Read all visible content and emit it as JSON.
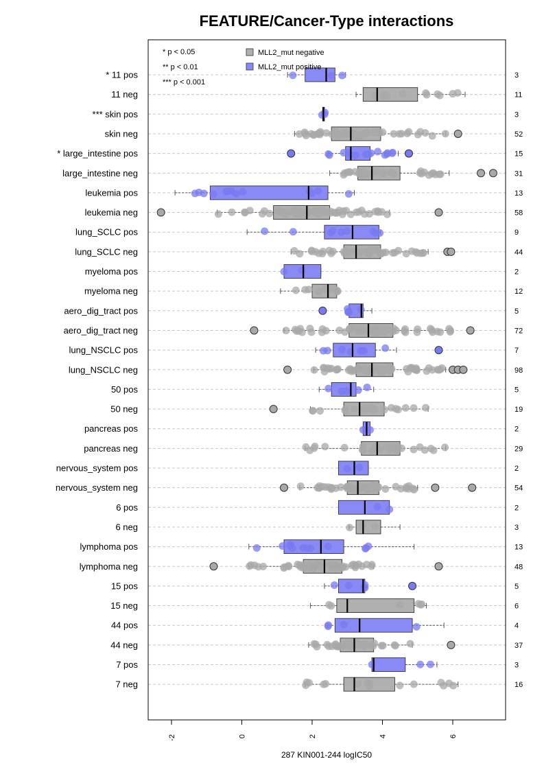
{
  "chart_data": {
    "type": "boxplot",
    "title": "FEATURE/Cancer-Type interactions",
    "xlabel": "287 KIN001-244 logIC50",
    "xlim": [
      -3,
      7.5
    ],
    "x_ticks": [
      "-2",
      "0",
      "2",
      "4",
      "6"
    ],
    "x_tick_values": [
      -2,
      0,
      2,
      4,
      6
    ],
    "orientation": "horizontal",
    "grid": "horizontal dashed",
    "colors": {
      "negative": "#b0b0b0",
      "positive": "#8a8af7",
      "negative_point": "#a8a8a8",
      "positive_point": "#7a7af0"
    },
    "significance_legend": [
      "* p < 0.05",
      "** p < 0.01",
      "*** p < 0.001"
    ],
    "legend": [
      {
        "label": "MLL2_mut negative",
        "group": "neg"
      },
      {
        "label": "MLL2_mut positive",
        "group": "pos"
      }
    ],
    "legend_position": "top-left",
    "rows": [
      {
        "label": "* 11 pos",
        "group": "pos",
        "n": "3",
        "q1": 1.8,
        "median": 2.4,
        "q3": 2.65,
        "wlo": 1.3,
        "whi": 2.95,
        "outliers": []
      },
      {
        "label": "11 neg",
        "group": "neg",
        "n": "11",
        "q1": 3.45,
        "median": 3.85,
        "q3": 5.0,
        "wlo": 3.25,
        "whi": 6.35,
        "outliers": []
      },
      {
        "label": "*** skin pos",
        "group": "pos",
        "n": "3",
        "q1": 2.3,
        "median": 2.32,
        "q3": 2.35,
        "wlo": 2.28,
        "whi": 2.37,
        "outliers": []
      },
      {
        "label": "skin neg",
        "group": "neg",
        "n": "52",
        "q1": 2.55,
        "median": 3.1,
        "q3": 3.95,
        "wlo": 1.5,
        "whi": 5.8,
        "outliers": [
          6.15
        ]
      },
      {
        "label": "* large_intestine pos",
        "group": "pos",
        "n": "15",
        "q1": 2.95,
        "median": 3.1,
        "q3": 3.65,
        "wlo": 2.45,
        "whi": 4.45,
        "outliers": [
          1.4,
          4.75
        ]
      },
      {
        "label": "large_intestine neg",
        "group": "neg",
        "n": "31",
        "q1": 3.3,
        "median": 3.7,
        "q3": 4.5,
        "wlo": 2.5,
        "whi": 5.9,
        "outliers": [
          6.8,
          7.15
        ]
      },
      {
        "label": "leukemia pos",
        "group": "pos",
        "n": "13",
        "q1": -0.9,
        "median": 1.9,
        "q3": 2.45,
        "wlo": -1.9,
        "whi": 3.2,
        "outliers": []
      },
      {
        "label": "leukemia neg",
        "group": "neg",
        "n": "58",
        "q1": 0.9,
        "median": 1.85,
        "q3": 2.5,
        "wlo": -0.7,
        "whi": 4.2,
        "outliers": [
          -2.3,
          5.6
        ]
      },
      {
        "label": "lung_SCLC pos",
        "group": "pos",
        "n": "9",
        "q1": 2.35,
        "median": 3.15,
        "q3": 3.9,
        "wlo": 0.15,
        "whi": 3.95,
        "outliers": []
      },
      {
        "label": "lung_SCLC neg",
        "group": "neg",
        "n": "44",
        "q1": 2.9,
        "median": 3.25,
        "q3": 3.95,
        "wlo": 1.4,
        "whi": 5.3,
        "outliers": [
          5.85,
          5.95
        ]
      },
      {
        "label": "myeloma pos",
        "group": "pos",
        "n": "2",
        "q1": 1.2,
        "median": 1.75,
        "q3": 2.25,
        "wlo": 1.2,
        "whi": 2.25,
        "outliers": []
      },
      {
        "label": "myeloma neg",
        "group": "neg",
        "n": "12",
        "q1": 2.0,
        "median": 2.45,
        "q3": 2.7,
        "wlo": 1.1,
        "whi": 2.75,
        "outliers": []
      },
      {
        "label": "aero_dig_tract pos",
        "group": "pos",
        "n": "5",
        "q1": 3.05,
        "median": 3.4,
        "q3": 3.45,
        "wlo": 3.0,
        "whi": 3.7,
        "outliers": [
          2.3
        ]
      },
      {
        "label": "aero_dig_tract neg",
        "group": "neg",
        "n": "72",
        "q1": 3.05,
        "median": 3.6,
        "q3": 4.3,
        "wlo": 1.2,
        "whi": 6.0,
        "outliers": [
          0.35,
          6.5
        ]
      },
      {
        "label": "lung_NSCLC pos",
        "group": "pos",
        "n": "7",
        "q1": 2.6,
        "median": 3.15,
        "q3": 3.8,
        "wlo": 2.1,
        "whi": 4.4,
        "outliers": [
          5.6
        ]
      },
      {
        "label": "lung_NSCLC neg",
        "group": "neg",
        "n": "98",
        "q1": 3.25,
        "median": 3.7,
        "q3": 4.3,
        "wlo": 2.05,
        "whi": 5.8,
        "outliers": [
          1.3,
          6.0,
          6.15,
          6.3
        ]
      },
      {
        "label": "50 pos",
        "group": "pos",
        "n": "5",
        "q1": 2.55,
        "median": 3.1,
        "q3": 3.25,
        "wlo": 2.2,
        "whi": 3.75,
        "outliers": []
      },
      {
        "label": "50 neg",
        "group": "neg",
        "n": "19",
        "q1": 2.9,
        "median": 3.35,
        "q3": 4.05,
        "wlo": 1.95,
        "whi": 5.3,
        "outliers": [
          0.9
        ]
      },
      {
        "label": "pancreas pos",
        "group": "pos",
        "n": "2",
        "q1": 3.45,
        "median": 3.55,
        "q3": 3.65,
        "wlo": 3.45,
        "whi": 3.65,
        "outliers": []
      },
      {
        "label": "pancreas neg",
        "group": "neg",
        "n": "29",
        "q1": 3.4,
        "median": 3.85,
        "q3": 4.5,
        "wlo": 1.8,
        "whi": 5.8,
        "outliers": []
      },
      {
        "label": "nervous_system pos",
        "group": "pos",
        "n": "2",
        "q1": 2.75,
        "median": 3.2,
        "q3": 3.6,
        "wlo": 2.75,
        "whi": 3.6,
        "outliers": []
      },
      {
        "label": "nervous_system neg",
        "group": "neg",
        "n": "54",
        "q1": 3.0,
        "median": 3.3,
        "q3": 3.9,
        "wlo": 1.65,
        "whi": 5.0,
        "outliers": [
          1.2,
          5.5,
          6.55
        ]
      },
      {
        "label": "6 pos",
        "group": "pos",
        "n": "2",
        "q1": 2.75,
        "median": 3.5,
        "q3": 4.2,
        "wlo": 2.75,
        "whi": 4.2,
        "outliers": []
      },
      {
        "label": "6 neg",
        "group": "neg",
        "n": "3",
        "q1": 3.25,
        "median": 3.45,
        "q3": 3.95,
        "wlo": 3.05,
        "whi": 4.5,
        "outliers": []
      },
      {
        "label": "lymphoma pos",
        "group": "pos",
        "n": "13",
        "q1": 1.2,
        "median": 2.25,
        "q3": 2.9,
        "wlo": 0.2,
        "whi": 4.9,
        "outliers": []
      },
      {
        "label": "lymphoma neg",
        "group": "neg",
        "n": "48",
        "q1": 1.75,
        "median": 2.35,
        "q3": 2.85,
        "wlo": 0.2,
        "whi": 3.75,
        "outliers": [
          -0.8,
          5.6
        ]
      },
      {
        "label": "15 pos",
        "group": "pos",
        "n": "5",
        "q1": 2.75,
        "median": 3.45,
        "q3": 3.5,
        "wlo": 2.35,
        "whi": 3.5,
        "outliers": [
          4.85
        ]
      },
      {
        "label": "15 neg",
        "group": "neg",
        "n": "6",
        "q1": 2.7,
        "median": 3.0,
        "q3": 4.9,
        "wlo": 1.95,
        "whi": 5.25,
        "outliers": []
      },
      {
        "label": "44 pos",
        "group": "pos",
        "n": "4",
        "q1": 2.65,
        "median": 3.35,
        "q3": 4.85,
        "wlo": 2.45,
        "whi": 5.75,
        "outliers": []
      },
      {
        "label": "44 neg",
        "group": "neg",
        "n": "37",
        "q1": 2.8,
        "median": 3.2,
        "q3": 3.75,
        "wlo": 1.9,
        "whi": 4.85,
        "outliers": [
          5.95
        ]
      },
      {
        "label": "7 pos",
        "group": "pos",
        "n": "3",
        "q1": 3.7,
        "median": 3.75,
        "q3": 4.65,
        "wlo": 3.7,
        "whi": 5.55,
        "outliers": []
      },
      {
        "label": "7 neg",
        "group": "neg",
        "n": "16",
        "q1": 2.9,
        "median": 3.2,
        "q3": 4.35,
        "wlo": 1.8,
        "whi": 6.15,
        "outliers": []
      }
    ]
  }
}
